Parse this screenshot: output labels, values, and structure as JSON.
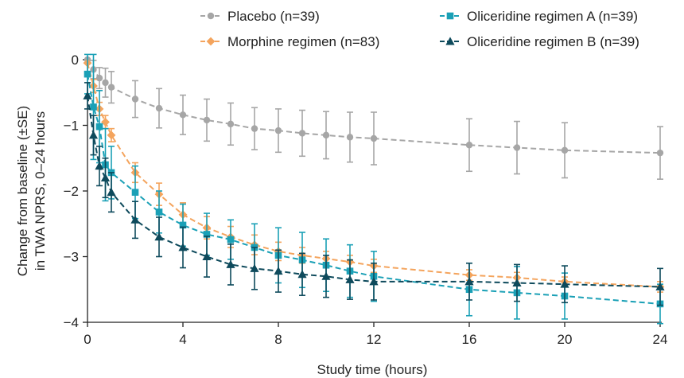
{
  "chart_data": {
    "type": "line",
    "xlabel": "Study time (hours)",
    "ylabel_lines": [
      "Change from baseline (±SE)",
      "in TWA NPRS, 0–24 hours"
    ],
    "xlim": [
      0,
      24
    ],
    "ylim": [
      -4,
      0
    ],
    "xticks": [
      0,
      4,
      8,
      12,
      16,
      20,
      24
    ],
    "yticks": [
      0,
      -1,
      -2,
      -3,
      -4
    ],
    "xtick_labels": [
      "0",
      "4",
      "8",
      "12",
      "16",
      "20",
      "24"
    ],
    "ytick_labels": [
      "0",
      "−1",
      "−2",
      "−3",
      "−4"
    ],
    "grid": false,
    "legend_position": "top",
    "x": [
      0,
      0.25,
      0.5,
      0.75,
      1,
      2,
      3,
      4,
      5,
      6,
      7,
      8,
      9,
      10,
      11,
      12,
      16,
      18,
      20,
      24
    ],
    "series": [
      {
        "name": "Placebo (n=39)",
        "color": "#a6a6a6",
        "marker": "circle",
        "values": [
          0,
          -0.15,
          -0.28,
          -0.35,
          -0.42,
          -0.6,
          -0.74,
          -0.84,
          -0.92,
          -0.98,
          -1.05,
          -1.08,
          -1.12,
          -1.15,
          -1.18,
          -1.2,
          -1.3,
          -1.34,
          -1.38,
          -1.42
        ],
        "se": [
          0,
          0.14,
          0.16,
          0.22,
          0.24,
          0.28,
          0.3,
          0.3,
          0.32,
          0.32,
          0.32,
          0.33,
          0.35,
          0.36,
          0.38,
          0.4,
          0.4,
          0.4,
          0.42,
          0.4
        ]
      },
      {
        "name": "Morphine regimen (n=83)",
        "color": "#f4a45d",
        "marker": "diamond",
        "values": [
          -0.05,
          -0.4,
          -0.75,
          -0.95,
          -1.15,
          -1.72,
          -2.05,
          -2.36,
          -2.56,
          -2.7,
          -2.82,
          -2.92,
          -2.98,
          -3.03,
          -3.08,
          -3.14,
          -3.28,
          -3.32,
          -3.38,
          -3.46
        ],
        "se": [
          0,
          0.1,
          0.1,
          0.1,
          0.1,
          0.15,
          0.17,
          0.18,
          0.17,
          0.16,
          0.15,
          0.14,
          0.12,
          0.11,
          0.1,
          0.1,
          0.08,
          0.08,
          0.07,
          0.08
        ]
      },
      {
        "name": "Oliceridine regimen A (n=39)",
        "color": "#1aa0b6",
        "marker": "square",
        "values": [
          -0.22,
          -0.72,
          -1.02,
          -1.6,
          -1.72,
          -2.02,
          -2.32,
          -2.52,
          -2.66,
          -2.74,
          -2.86,
          -2.98,
          -3.05,
          -3.13,
          -3.22,
          -3.3,
          -3.5,
          -3.55,
          -3.6,
          -3.72
        ],
        "se": [
          0.3,
          0.8,
          0.55,
          0.55,
          0.4,
          0.4,
          0.32,
          0.32,
          0.32,
          0.3,
          0.36,
          0.42,
          0.42,
          0.4,
          0.4,
          0.38,
          0.4,
          0.4,
          0.35,
          0.3
        ]
      },
      {
        "name": "Oliceridine regimen B (n=39)",
        "color": "#0e4a5c",
        "marker": "triangle",
        "values": [
          -0.55,
          -1.15,
          -1.62,
          -1.8,
          -2.02,
          -2.44,
          -2.7,
          -2.86,
          -3.0,
          -3.12,
          -3.18,
          -3.22,
          -3.27,
          -3.3,
          -3.35,
          -3.38,
          -3.38,
          -3.4,
          -3.42,
          -3.46
        ],
        "se": [
          0.2,
          0.3,
          0.3,
          0.3,
          0.3,
          0.28,
          0.3,
          0.31,
          0.31,
          0.31,
          0.32,
          0.32,
          0.32,
          0.32,
          0.3,
          0.28,
          0.28,
          0.28,
          0.28,
          0.28
        ]
      }
    ]
  }
}
